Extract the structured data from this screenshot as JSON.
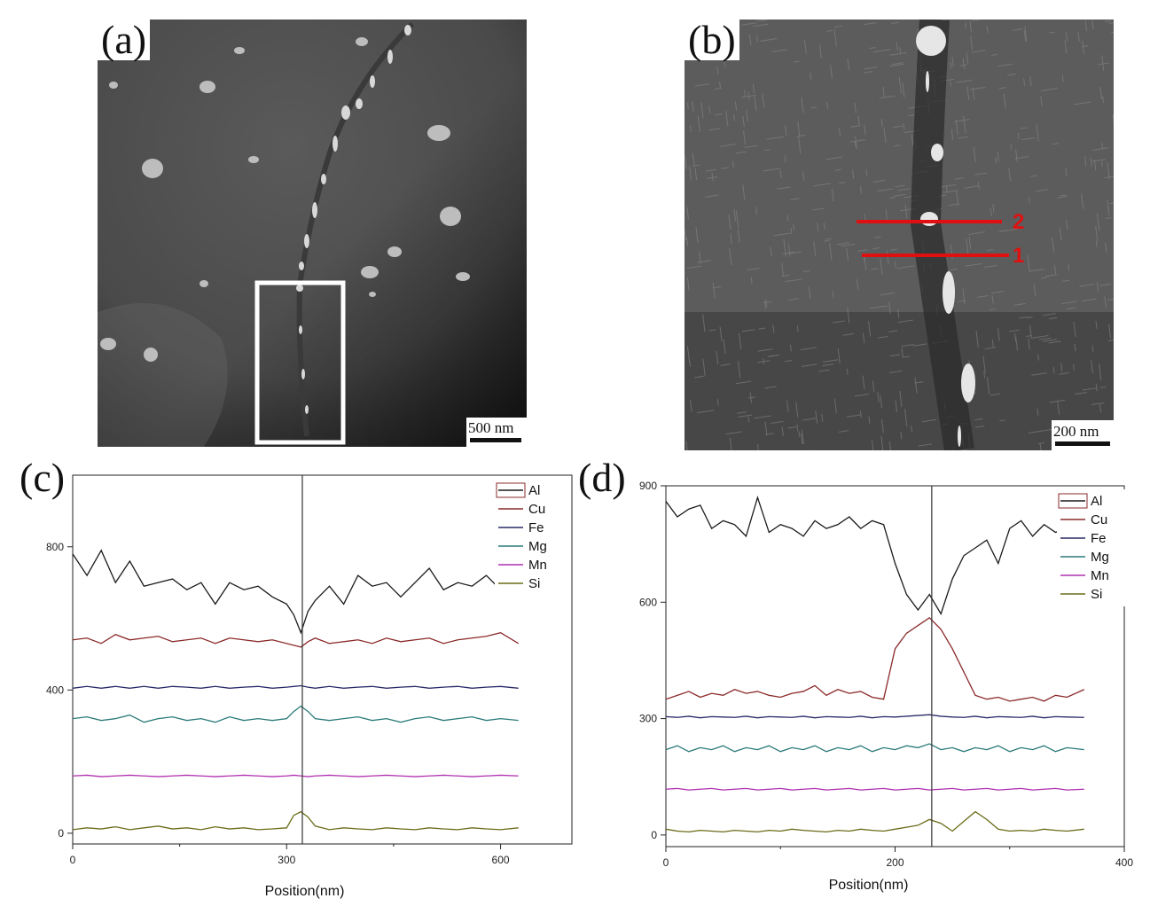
{
  "panels": {
    "a": {
      "label": "(a)",
      "scale_bar": "500 nm"
    },
    "b": {
      "label": "(b)",
      "scale_bar": "200 nm",
      "line_labels": [
        "2",
        "1"
      ]
    },
    "c": {
      "label": "(c)"
    },
    "d": {
      "label": "(d)"
    }
  },
  "colors": {
    "Al": "#1a1a1a",
    "Cu": "#8b2a2a",
    "Fe": "#2a2a6a",
    "Mg": "#2a7a7a",
    "Mn": "#b030b0",
    "Si": "#6b6b1a",
    "marker": "#333333",
    "red_line": "#e01010"
  },
  "chart_data": [
    {
      "type": "line",
      "panel": "(c)",
      "xlabel": "Position(nm)",
      "ylabel": "",
      "xlim": [
        0,
        700
      ],
      "ylim": [
        -30,
        1000
      ],
      "xticks": [
        0,
        300,
        600
      ],
      "yticks": [
        0,
        400,
        800
      ],
      "marker_x": 322,
      "legend": [
        "Al",
        "Cu",
        "Fe",
        "Mg",
        "Mn",
        "Si"
      ],
      "legend_position": "top-right",
      "x": [
        0,
        20,
        40,
        60,
        80,
        100,
        120,
        140,
        160,
        180,
        200,
        220,
        240,
        260,
        280,
        300,
        310,
        320,
        330,
        340,
        360,
        380,
        400,
        420,
        440,
        460,
        480,
        500,
        520,
        540,
        560,
        580,
        600,
        625
      ],
      "series": [
        {
          "name": "Al",
          "values": [
            780,
            720,
            790,
            700,
            760,
            690,
            700,
            710,
            680,
            700,
            640,
            700,
            680,
            690,
            660,
            640,
            610,
            560,
            620,
            650,
            690,
            640,
            720,
            690,
            700,
            660,
            700,
            740,
            680,
            700,
            690,
            720,
            680,
            700
          ]
        },
        {
          "name": "Cu",
          "values": [
            540,
            545,
            530,
            555,
            540,
            545,
            550,
            535,
            540,
            545,
            530,
            545,
            540,
            535,
            540,
            530,
            525,
            520,
            535,
            545,
            530,
            535,
            540,
            530,
            545,
            535,
            540,
            545,
            530,
            540,
            545,
            550,
            560,
            530
          ]
        },
        {
          "name": "Fe",
          "values": [
            405,
            410,
            405,
            410,
            405,
            410,
            405,
            410,
            408,
            405,
            410,
            405,
            408,
            410,
            405,
            408,
            410,
            412,
            408,
            405,
            410,
            405,
            408,
            410,
            405,
            408,
            410,
            405,
            408,
            410,
            405,
            408,
            410,
            405
          ]
        },
        {
          "name": "Mg",
          "values": [
            320,
            325,
            315,
            320,
            330,
            310,
            320,
            325,
            315,
            320,
            310,
            325,
            315,
            320,
            315,
            320,
            340,
            355,
            340,
            320,
            315,
            320,
            325,
            315,
            320,
            310,
            320,
            325,
            315,
            320,
            325,
            315,
            320,
            315
          ]
        },
        {
          "name": "Mn",
          "values": [
            160,
            162,
            158,
            160,
            162,
            160,
            158,
            160,
            162,
            160,
            158,
            160,
            162,
            160,
            158,
            160,
            162,
            160,
            158,
            160,
            162,
            160,
            158,
            160,
            162,
            160,
            158,
            160,
            162,
            160,
            158,
            160,
            162,
            160
          ]
        },
        {
          "name": "Si",
          "values": [
            10,
            15,
            12,
            18,
            10,
            15,
            20,
            12,
            15,
            10,
            18,
            12,
            15,
            10,
            12,
            15,
            50,
            60,
            45,
            20,
            10,
            15,
            12,
            10,
            15,
            12,
            10,
            15,
            12,
            10,
            15,
            12,
            10,
            15
          ]
        }
      ]
    },
    {
      "type": "line",
      "panel": "(d)",
      "xlabel": "Position(nm)",
      "ylabel": "",
      "xlim": [
        0,
        400
      ],
      "ylim": [
        -30,
        900
      ],
      "xticks": [
        0,
        200,
        400
      ],
      "yticks": [
        0,
        300,
        600,
        900
      ],
      "marker_x": 232,
      "legend": [
        "Al",
        "Cu",
        "Fe",
        "Mg",
        "Mn",
        "Si"
      ],
      "legend_position": "top-right",
      "x": [
        0,
        10,
        20,
        30,
        40,
        50,
        60,
        70,
        80,
        90,
        100,
        110,
        120,
        130,
        140,
        150,
        160,
        170,
        180,
        190,
        200,
        210,
        220,
        230,
        240,
        250,
        260,
        270,
        280,
        290,
        300,
        310,
        320,
        330,
        340,
        350,
        365
      ],
      "series": [
        {
          "name": "Al",
          "values": [
            860,
            820,
            840,
            850,
            790,
            810,
            800,
            770,
            870,
            780,
            800,
            790,
            770,
            810,
            790,
            800,
            820,
            790,
            810,
            800,
            700,
            620,
            580,
            620,
            570,
            660,
            720,
            740,
            760,
            700,
            790,
            810,
            770,
            800,
            780,
            790,
            770
          ]
        },
        {
          "name": "Cu",
          "values": [
            350,
            360,
            370,
            355,
            365,
            360,
            375,
            365,
            370,
            360,
            355,
            365,
            370,
            385,
            360,
            375,
            365,
            370,
            355,
            350,
            480,
            520,
            540,
            560,
            530,
            480,
            420,
            360,
            350,
            355,
            345,
            350,
            355,
            345,
            360,
            355,
            375
          ]
        },
        {
          "name": "Fe",
          "values": [
            305,
            303,
            306,
            302,
            305,
            304,
            303,
            306,
            302,
            305,
            304,
            303,
            306,
            302,
            305,
            304,
            303,
            306,
            302,
            305,
            304,
            306,
            308,
            310,
            306,
            304,
            303,
            306,
            302,
            305,
            304,
            303,
            306,
            302,
            305,
            304,
            303
          ]
        },
        {
          "name": "Mg",
          "values": [
            220,
            230,
            215,
            225,
            220,
            230,
            215,
            225,
            220,
            230,
            215,
            225,
            220,
            230,
            215,
            225,
            220,
            230,
            215,
            225,
            220,
            230,
            225,
            235,
            220,
            225,
            215,
            225,
            220,
            230,
            215,
            225,
            220,
            230,
            215,
            225,
            220
          ]
        },
        {
          "name": "Mn",
          "values": [
            118,
            120,
            116,
            118,
            120,
            116,
            118,
            120,
            116,
            118,
            120,
            116,
            118,
            120,
            116,
            118,
            120,
            116,
            118,
            120,
            116,
            118,
            120,
            116,
            118,
            120,
            116,
            118,
            120,
            116,
            118,
            120,
            116,
            118,
            120,
            116,
            118
          ]
        },
        {
          "name": "Si",
          "values": [
            15,
            10,
            8,
            12,
            10,
            8,
            12,
            10,
            8,
            12,
            10,
            15,
            12,
            10,
            8,
            12,
            10,
            15,
            12,
            10,
            15,
            20,
            25,
            40,
            30,
            10,
            35,
            60,
            40,
            15,
            10,
            12,
            10,
            15,
            12,
            10,
            15
          ]
        }
      ]
    }
  ]
}
